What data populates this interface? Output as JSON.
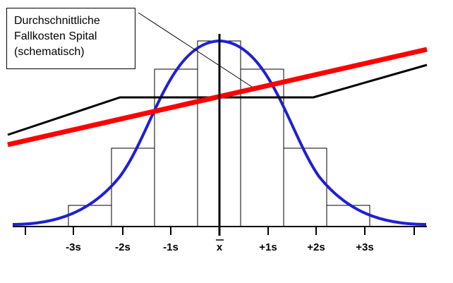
{
  "annotation": {
    "lines": [
      "Durchschnittliche",
      "Fallkosten Spital",
      "(schematisch)"
    ]
  },
  "axis": {
    "tick_labels": [
      "-3s",
      "-2s",
      "-1s",
      "x",
      "+1s",
      "+2s",
      "+3s"
    ],
    "mean_label_has_bar": true
  },
  "chart_data": {
    "type": "schematic",
    "histogram_heights_relative": [
      0.1,
      0.39,
      0.8,
      0.95,
      0.8,
      0.39,
      0.1
    ],
    "normal_curve_color": "#1f1fd6",
    "regression_line_color": "#ff0000",
    "flat_threshold_line_color": "#000000"
  }
}
